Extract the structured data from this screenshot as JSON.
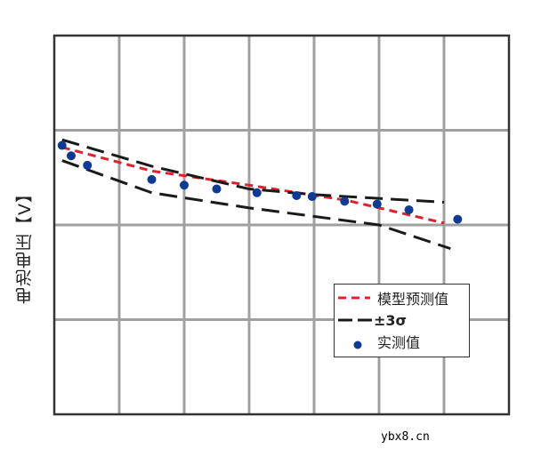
{
  "chart_data": {
    "type": "line",
    "title": "",
    "xlabel": "",
    "ylabel": "电池电压【V】",
    "x_ticks": [],
    "y_ticks": [],
    "grid": true,
    "grid_columns": 7,
    "grid_rows": 4,
    "legend_position": "lower right inside",
    "units_note": "No tick labels shown; x in grid-column units (0-7), y in grid-row units from top (0-4)",
    "series": [
      {
        "name": "模型预测值",
        "style": "dashed",
        "color": "#e0202a",
        "points": [
          [
            0.12,
            1.18
          ],
          [
            1.5,
            1.43
          ],
          [
            3.0,
            1.58
          ],
          [
            4.5,
            1.74
          ],
          [
            6.0,
            1.98
          ]
        ]
      },
      {
        "name": "±3σ (upper)",
        "style": "dashed",
        "color": "#1a1a1a",
        "points": [
          [
            0.12,
            1.1
          ],
          [
            1.5,
            1.38
          ],
          [
            3.0,
            1.62
          ],
          [
            4.0,
            1.68
          ],
          [
            6.0,
            1.76
          ]
        ]
      },
      {
        "name": "±3σ (lower)",
        "style": "dashed",
        "color": "#1a1a1a",
        "points": [
          [
            0.12,
            1.32
          ],
          [
            1.5,
            1.66
          ],
          [
            3.0,
            1.82
          ],
          [
            5.0,
            2.0
          ],
          [
            6.1,
            2.25
          ]
        ]
      },
      {
        "name": "实测值",
        "style": "markers",
        "color": "#0d3a94",
        "points": [
          [
            0.12,
            1.16
          ],
          [
            0.26,
            1.27
          ],
          [
            0.51,
            1.37
          ],
          [
            1.5,
            1.52
          ],
          [
            2.0,
            1.58
          ],
          [
            2.5,
            1.62
          ],
          [
            3.12,
            1.66
          ],
          [
            3.73,
            1.69
          ],
          [
            3.97,
            1.7
          ],
          [
            4.47,
            1.75
          ],
          [
            4.97,
            1.78
          ],
          [
            5.46,
            1.84
          ],
          [
            6.21,
            1.94
          ]
        ]
      }
    ],
    "legend": [
      {
        "label": "模型预测值",
        "kind": "red-dashed-line"
      },
      {
        "label": "±3σ",
        "kind": "black-dashed-line"
      },
      {
        "label": "实测值",
        "kind": "blue-dot"
      }
    ]
  },
  "axis": {
    "ylabel": "电池电压【V】"
  },
  "legend": {
    "items": [
      {
        "label": "模型预测值"
      },
      {
        "label": "±3σ"
      },
      {
        "label": "实测值"
      }
    ]
  },
  "colors": {
    "prediction": "#e0202a",
    "sigma": "#1a1a1a",
    "measured": "#0d3a94",
    "grid": "#a0a0a0",
    "frame": "#333333"
  },
  "watermark": "ybx8.cn"
}
